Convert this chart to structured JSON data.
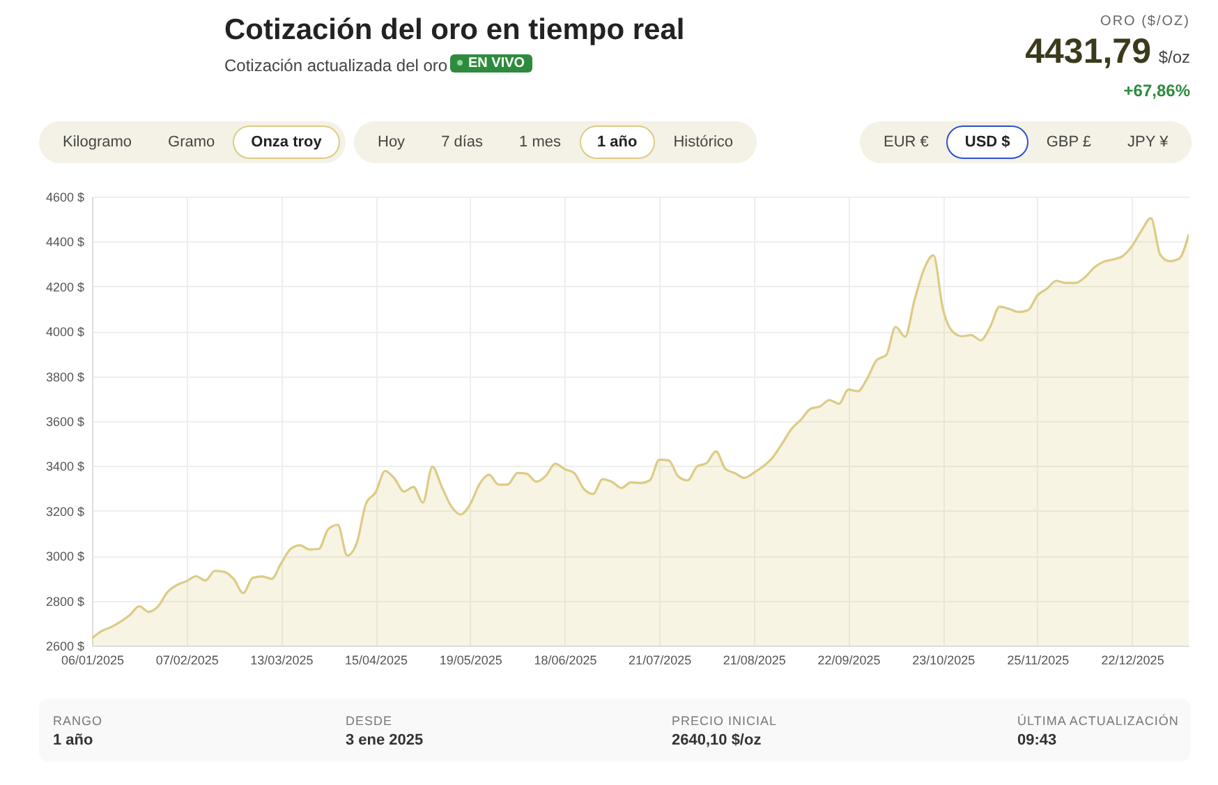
{
  "chart_data": {
    "type": "area",
    "title": "Cotización del oro en tiempo real",
    "subtitle": "Cotización actualizada del oro",
    "annotations": [
      "EN VIVO",
      "ORO ($/OZ)",
      "4431,79",
      "$/oz",
      "+67,86%",
      "Kilogramo",
      "Gramo",
      "Onza troy",
      "Hoy",
      "7 días",
      "1 mes",
      "1 año",
      "Histórico",
      "EUR €",
      "USD $",
      "GBP £",
      "JPY ¥",
      "RANGO",
      "1 año",
      "DESDE",
      "3 ene 2025",
      "PRECIO INICIAL",
      "2640,10 $/oz",
      "ÚLTIMA ACTUALIZACIÓN",
      "09:43"
    ],
    "categories": [
      "06/01/2025",
      null,
      null,
      null,
      null,
      null,
      null,
      null,
      null,
      null,
      "07/02/2025",
      null,
      null,
      null,
      null,
      null,
      null,
      null,
      null,
      null,
      "13/03/2025",
      null,
      null,
      null,
      null,
      null,
      null,
      null,
      null,
      null,
      "15/04/2025",
      null,
      null,
      null,
      null,
      null,
      null,
      null,
      null,
      null,
      "19/05/2025",
      null,
      null,
      null,
      null,
      null,
      null,
      null,
      null,
      null,
      "18/06/2025",
      null,
      null,
      null,
      null,
      null,
      null,
      null,
      null,
      null,
      "21/07/2025",
      null,
      null,
      null,
      null,
      null,
      null,
      null,
      null,
      null,
      "21/08/2025",
      null,
      null,
      null,
      null,
      null,
      null,
      null,
      null,
      null,
      "22/09/2025",
      null,
      null,
      null,
      null,
      null,
      null,
      null,
      null,
      null,
      "23/10/2025",
      null,
      null,
      null,
      null,
      null,
      null,
      null,
      null,
      null,
      "25/11/2025",
      null,
      null,
      null,
      null,
      null,
      null,
      null,
      null,
      null,
      "22/12/2025",
      null,
      null,
      null,
      null,
      null,
      null
    ],
    "series": [
      {
        "color": "#dccb85",
        "values": [
          2633,
          2664,
          2682,
          2706,
          2736,
          2775,
          2750,
          2775,
          2839,
          2870,
          2887,
          2909,
          2890,
          2933,
          2928,
          2896,
          2834,
          2902,
          2908,
          2897,
          2966,
          3030,
          3047,
          3028,
          3031,
          3119,
          3138,
          3001,
          3056,
          3235,
          3283,
          3378,
          3344,
          3286,
          3307,
          3237,
          3397,
          3307,
          3221,
          3184,
          3230,
          3320,
          3361,
          3317,
          3318,
          3369,
          3365,
          3330,
          3356,
          3410,
          3386,
          3369,
          3299,
          3275,
          3341,
          3329,
          3302,
          3327,
          3324,
          3336,
          3428,
          3425,
          3354,
          3336,
          3398,
          3413,
          3465,
          3387,
          3368,
          3347,
          3370,
          3399,
          3438,
          3500,
          3566,
          3607,
          3655,
          3665,
          3694,
          3677,
          3740,
          3733,
          3790,
          3872,
          3894,
          4020,
          3976,
          4140,
          4277,
          4339,
          4100,
          4000,
          3978,
          3983,
          3960,
          4020,
          4110,
          4100,
          4086,
          4094,
          4160,
          4190,
          4225,
          4215,
          4215,
          4240,
          4284,
          4310,
          4320,
          4335,
          4380,
          4448,
          4504,
          4340,
          4312,
          4324,
          4432
        ]
      }
    ],
    "ylim": [
      2600,
      4600
    ],
    "yticks": [
      {
        "value": 2600,
        "label": "2600 $"
      },
      {
        "value": 2800,
        "label": "2800 $"
      },
      {
        "value": 3000,
        "label": "3000 $"
      },
      {
        "value": 3200,
        "label": "3200 $"
      },
      {
        "value": 3400,
        "label": "3400 $"
      },
      {
        "value": 3600,
        "label": "3600 $"
      },
      {
        "value": 3800,
        "label": "3800 $"
      },
      {
        "value": 4000,
        "label": "4000 $"
      },
      {
        "value": 4200,
        "label": "4200 $"
      },
      {
        "value": 4400,
        "label": "4400 $"
      },
      {
        "value": 4600,
        "label": "4600 $"
      }
    ],
    "grid": true
  }
}
